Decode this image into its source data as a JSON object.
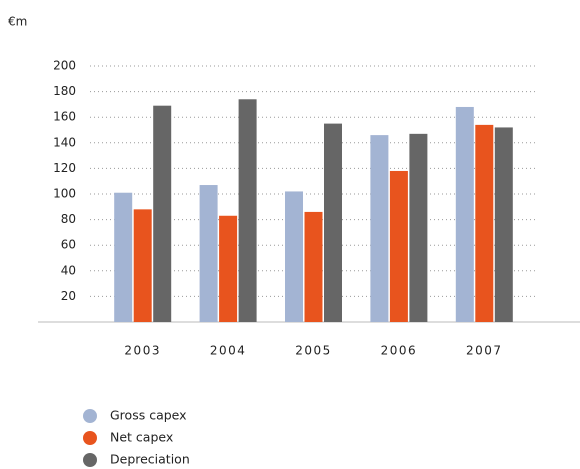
{
  "chart_data": {
    "type": "bar",
    "unit_label": "€m",
    "categories": [
      "2003",
      "2004",
      "2005",
      "2006",
      "2007"
    ],
    "series": [
      {
        "name": "Gross capex",
        "color": "#a3b4d3",
        "values": [
          101,
          107,
          102,
          146,
          168
        ]
      },
      {
        "name": "Net capex",
        "color": "#e8541e",
        "values": [
          88,
          83,
          86,
          118,
          154
        ]
      },
      {
        "name": "Depreciation",
        "color": "#666666",
        "values": [
          169,
          174,
          155,
          147,
          152
        ]
      }
    ],
    "ylim": [
      0,
      200
    ],
    "yticks": [
      20,
      40,
      60,
      80,
      100,
      120,
      140,
      160,
      180,
      200
    ],
    "grid": true
  }
}
